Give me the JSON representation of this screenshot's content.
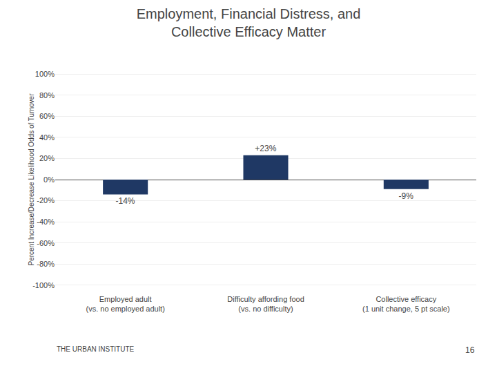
{
  "chart_data": {
    "type": "bar",
    "title": "Employment, Financial Distress, and\nCollective Efficacy Matter",
    "categories": [
      "Employed adult\n(vs. no employed adult)",
      "Difficulty affording food\n(vs. no difficulty)",
      "Collective efficacy\n(1 unit change, 5 pt scale)"
    ],
    "values": [
      -14,
      23,
      -9
    ],
    "value_labels": [
      "-14%",
      "+23%",
      "-9%"
    ],
    "data_labels": true,
    "color": "#1F3864",
    "y_label": "Percent Increase/Decrease Likelihood Odds of Turnover",
    "ylim": [
      -108,
      108
    ],
    "yticks": [
      {
        "value": -100,
        "label": "-100%"
      },
      {
        "value": -80,
        "label": "-80%"
      },
      {
        "value": -60,
        "label": "-60%"
      },
      {
        "value": -40,
        "label": "-40%"
      },
      {
        "value": -20,
        "label": "-20%"
      },
      {
        "value": 0,
        "label": "0%"
      },
      {
        "value": 20,
        "label": "20%"
      },
      {
        "value": 40,
        "label": "40%"
      },
      {
        "value": 60,
        "label": "60%"
      },
      {
        "value": 80,
        "label": "80%"
      },
      {
        "value": 100,
        "label": "100%"
      }
    ],
    "grid": true,
    "footer": "THE URBAN INSTITUTE",
    "page": "16"
  }
}
